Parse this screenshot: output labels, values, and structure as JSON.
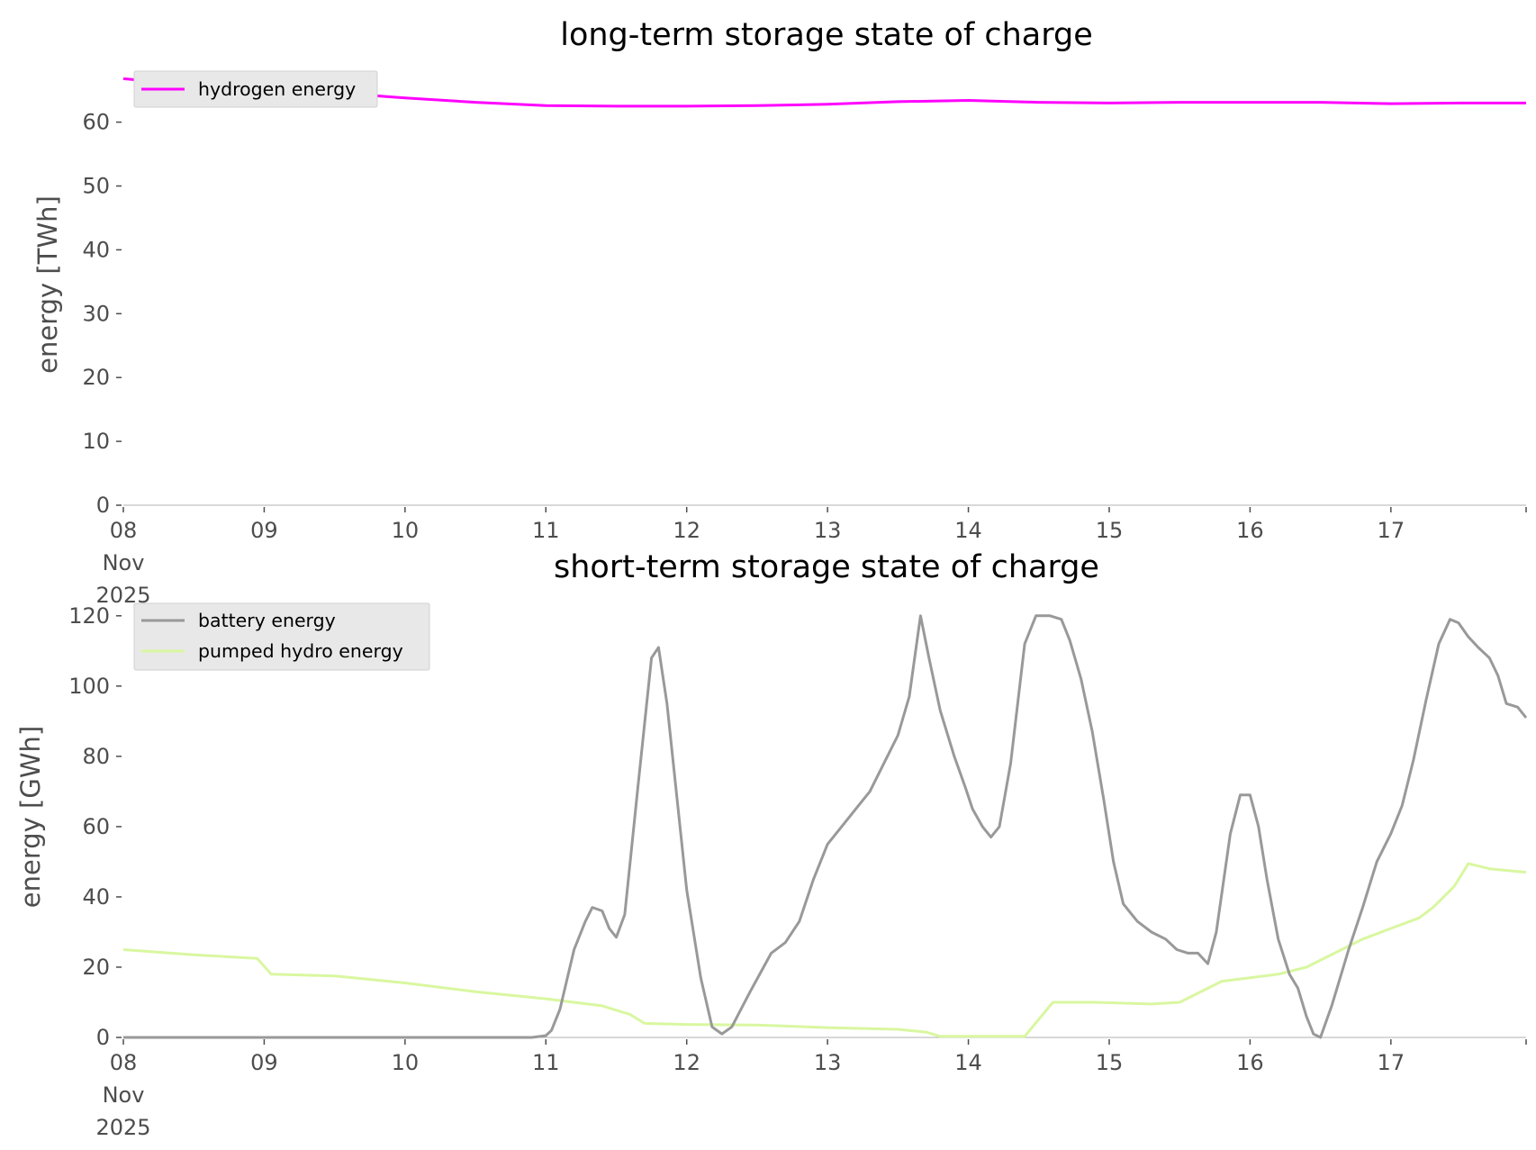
{
  "chart_data": [
    {
      "type": "line",
      "title": "long-term storage state of charge",
      "ylabel": "energy [TWh]",
      "xlabel": "",
      "ylim": [
        0,
        67
      ],
      "yticks": [
        0,
        10,
        20,
        30,
        40,
        50,
        60
      ],
      "xlim": [
        0,
        9.96
      ],
      "xticks": [
        {
          "pos": 0,
          "label": [
            "08",
            "Nov",
            "2025"
          ]
        },
        {
          "pos": 1,
          "label": [
            "09"
          ]
        },
        {
          "pos": 2,
          "label": [
            "10"
          ]
        },
        {
          "pos": 3,
          "label": [
            "11"
          ]
        },
        {
          "pos": 4,
          "label": [
            "12"
          ]
        },
        {
          "pos": 5,
          "label": [
            "13"
          ]
        },
        {
          "pos": 6,
          "label": [
            "14"
          ]
        },
        {
          "pos": 7,
          "label": [
            "15"
          ]
        },
        {
          "pos": 8,
          "label": [
            "16"
          ]
        },
        {
          "pos": 9,
          "label": [
            "17"
          ]
        }
      ],
      "grid": false,
      "legend_position": "top-left",
      "series": [
        {
          "name": "hydrogen energy",
          "color": "#ff00ff",
          "points": [
            [
              0,
              66.8
            ],
            [
              0.5,
              65.8
            ],
            [
              1,
              65.1
            ],
            [
              1.5,
              64.6
            ],
            [
              2,
              63.8
            ],
            [
              2.5,
              63.1
            ],
            [
              3,
              62.6
            ],
            [
              3.5,
              62.5
            ],
            [
              4,
              62.5
            ],
            [
              4.5,
              62.6
            ],
            [
              5,
              62.8
            ],
            [
              5.5,
              63.2
            ],
            [
              6,
              63.4
            ],
            [
              6.5,
              63.1
            ],
            [
              7,
              63.0
            ],
            [
              7.5,
              63.1
            ],
            [
              8,
              63.1
            ],
            [
              8.5,
              63.1
            ],
            [
              9,
              62.9
            ],
            [
              9.5,
              63.0
            ],
            [
              9.96,
              63.0
            ]
          ]
        }
      ]
    },
    {
      "type": "line",
      "title": "short-term storage state of charge",
      "ylabel": "energy [GWh]",
      "xlabel": "",
      "ylim": [
        0,
        122
      ],
      "yticks": [
        0,
        20,
        40,
        60,
        80,
        100,
        120
      ],
      "xlim": [
        0,
        9.96
      ],
      "xticks": [
        {
          "pos": 0,
          "label": [
            "08",
            "Nov",
            "2025"
          ]
        },
        {
          "pos": 1,
          "label": [
            "09"
          ]
        },
        {
          "pos": 2,
          "label": [
            "10"
          ]
        },
        {
          "pos": 3,
          "label": [
            "11"
          ]
        },
        {
          "pos": 4,
          "label": [
            "12"
          ]
        },
        {
          "pos": 5,
          "label": [
            "13"
          ]
        },
        {
          "pos": 6,
          "label": [
            "14"
          ]
        },
        {
          "pos": 7,
          "label": [
            "15"
          ]
        },
        {
          "pos": 8,
          "label": [
            "16"
          ]
        },
        {
          "pos": 9,
          "label": [
            "17"
          ]
        }
      ],
      "grid": false,
      "legend_position": "top-left",
      "series": [
        {
          "name": "battery energy",
          "color": "#999999",
          "points": [
            [
              0,
              0
            ],
            [
              2.9,
              0
            ],
            [
              3.0,
              0.5
            ],
            [
              3.04,
              2
            ],
            [
              3.1,
              8
            ],
            [
              3.2,
              25
            ],
            [
              3.28,
              33
            ],
            [
              3.33,
              37
            ],
            [
              3.4,
              36
            ],
            [
              3.45,
              31
            ],
            [
              3.5,
              28.5
            ],
            [
              3.56,
              35
            ],
            [
              3.65,
              70
            ],
            [
              3.75,
              108
            ],
            [
              3.8,
              111
            ],
            [
              3.86,
              95
            ],
            [
              4.0,
              42
            ],
            [
              4.1,
              17
            ],
            [
              4.18,
              3
            ],
            [
              4.25,
              1
            ],
            [
              4.32,
              3
            ],
            [
              4.45,
              13
            ],
            [
              4.6,
              24
            ],
            [
              4.7,
              27
            ],
            [
              4.8,
              33
            ],
            [
              4.9,
              45
            ],
            [
              5.0,
              55
            ],
            [
              5.1,
              60
            ],
            [
              5.2,
              65
            ],
            [
              5.3,
              70
            ],
            [
              5.4,
              78
            ],
            [
              5.5,
              86
            ],
            [
              5.58,
              97
            ],
            [
              5.66,
              120
            ],
            [
              5.72,
              108
            ],
            [
              5.8,
              93
            ],
            [
              5.9,
              80
            ],
            [
              5.98,
              71
            ],
            [
              6.03,
              65
            ],
            [
              6.1,
              60
            ],
            [
              6.16,
              57
            ],
            [
              6.22,
              60
            ],
            [
              6.3,
              78
            ],
            [
              6.4,
              112
            ],
            [
              6.48,
              120
            ],
            [
              6.58,
              120
            ],
            [
              6.66,
              119
            ],
            [
              6.72,
              113
            ],
            [
              6.8,
              102
            ],
            [
              6.88,
              87
            ],
            [
              6.96,
              68
            ],
            [
              7.03,
              50
            ],
            [
              7.1,
              38
            ],
            [
              7.2,
              33
            ],
            [
              7.3,
              30
            ],
            [
              7.4,
              28
            ],
            [
              7.48,
              25
            ],
            [
              7.56,
              24
            ],
            [
              7.63,
              24
            ],
            [
              7.7,
              21
            ],
            [
              7.76,
              30
            ],
            [
              7.86,
              58
            ],
            [
              7.93,
              69
            ],
            [
              8.0,
              69
            ],
            [
              8.06,
              60
            ],
            [
              8.12,
              45
            ],
            [
              8.2,
              28
            ],
            [
              8.28,
              18
            ],
            [
              8.34,
              14
            ],
            [
              8.4,
              6
            ],
            [
              8.45,
              1
            ],
            [
              8.5,
              0
            ],
            [
              8.58,
              9
            ],
            [
              8.7,
              25
            ],
            [
              8.8,
              37
            ],
            [
              8.9,
              50
            ],
            [
              9.0,
              58
            ],
            [
              9.08,
              66
            ],
            [
              9.16,
              79
            ],
            [
              9.25,
              96
            ],
            [
              9.34,
              112
            ],
            [
              9.42,
              119
            ],
            [
              9.48,
              118
            ],
            [
              9.55,
              114
            ],
            [
              9.62,
              111
            ],
            [
              9.7,
              108
            ],
            [
              9.76,
              103
            ],
            [
              9.82,
              95
            ],
            [
              9.9,
              94
            ],
            [
              9.96,
              91
            ]
          ]
        },
        {
          "name": "pumped hydro energy",
          "color": "#d9f7a0",
          "points": [
            [
              0,
              25
            ],
            [
              0.5,
              23.5
            ],
            [
              0.95,
              22.5
            ],
            [
              1.05,
              18
            ],
            [
              1.5,
              17.5
            ],
            [
              2.0,
              15.5
            ],
            [
              2.5,
              13
            ],
            [
              3.0,
              11
            ],
            [
              3.4,
              9
            ],
            [
              3.6,
              6.5
            ],
            [
              3.7,
              4
            ],
            [
              4.0,
              3.7
            ],
            [
              4.5,
              3.5
            ],
            [
              5.0,
              2.8
            ],
            [
              5.5,
              2.3
            ],
            [
              5.7,
              1.5
            ],
            [
              5.8,
              0.3
            ],
            [
              6.4,
              0.3
            ],
            [
              6.6,
              10
            ],
            [
              6.9,
              10
            ],
            [
              7.3,
              9.5
            ],
            [
              7.5,
              10
            ],
            [
              7.8,
              16
            ],
            [
              8.0,
              17
            ],
            [
              8.2,
              18
            ],
            [
              8.4,
              20
            ],
            [
              8.6,
              24
            ],
            [
              8.8,
              28
            ],
            [
              9.0,
              31
            ],
            [
              9.2,
              34
            ],
            [
              9.3,
              37
            ],
            [
              9.45,
              43
            ],
            [
              9.55,
              49.5
            ],
            [
              9.7,
              48
            ],
            [
              9.96,
              47
            ]
          ]
        }
      ]
    }
  ]
}
